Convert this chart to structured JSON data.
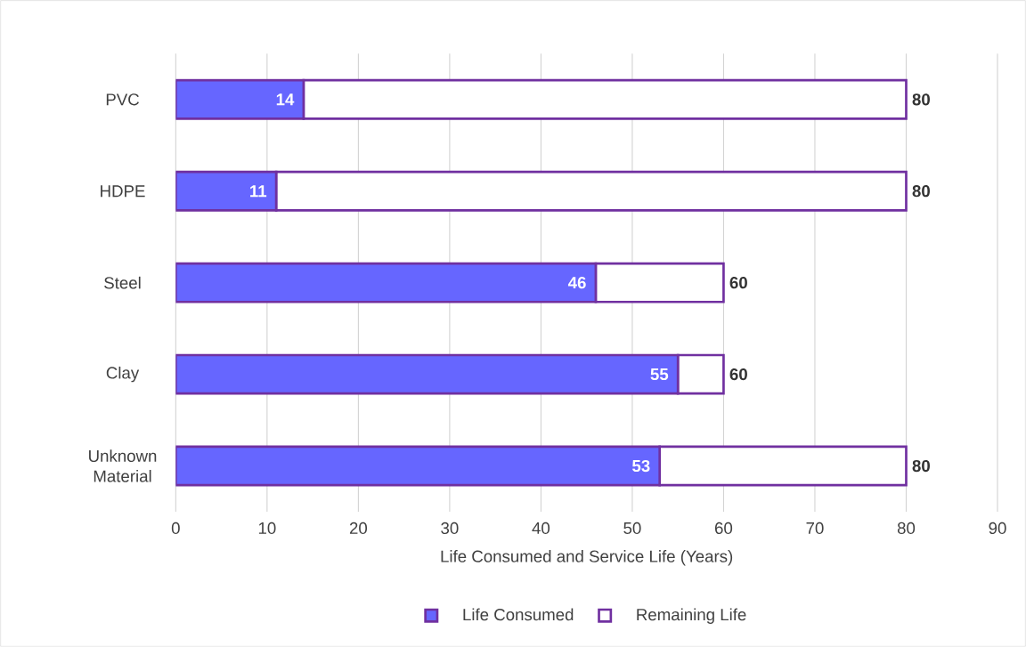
{
  "chart_data": {
    "type": "bar",
    "orientation": "horizontal",
    "stacked": true,
    "categories": [
      "PVC",
      "HDPE",
      "Steel",
      "Clay",
      "Unknown Material"
    ],
    "series": [
      {
        "name": "Life Consumed",
        "color": "#6666ff",
        "values": [
          14,
          11,
          46,
          55,
          53
        ],
        "value_labels": [
          "14",
          "11",
          "46",
          "55",
          "53"
        ]
      },
      {
        "name": "Remaining Life",
        "color": "#ffffff",
        "values": [
          66,
          69,
          14,
          5,
          27
        ]
      }
    ],
    "totals": [
      "80",
      "80",
      "60",
      "60",
      "80"
    ],
    "xlabel": "Life Consumed and Service Life (Years)",
    "xlim": [
      0,
      90
    ],
    "xticks": [
      0,
      10,
      20,
      30,
      40,
      50,
      60,
      70,
      80,
      90
    ],
    "grid": "x",
    "legend": "bottom"
  }
}
